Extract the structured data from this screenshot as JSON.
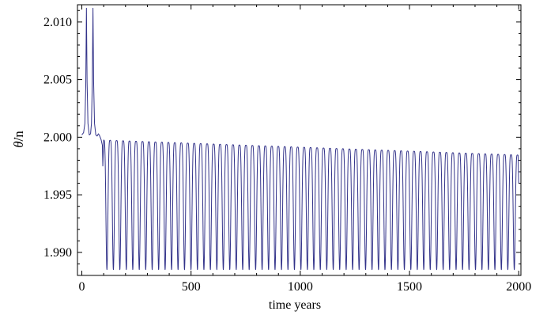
{
  "chart_data": {
    "type": "line",
    "title": "",
    "xlabel": "time  years",
    "ylabel": "θ̇/n",
    "ylabel_main": "θ̇",
    "ylabel_suffix": "/n",
    "xlim": [
      -20,
      2010
    ],
    "ylim": [
      1.988,
      2.0115
    ],
    "xticks": [
      0,
      500,
      1000,
      1500,
      2000
    ],
    "xtick_labels": [
      "0",
      "500",
      "1000",
      "1500",
      "2000"
    ],
    "yticks": [
      1.99,
      1.995,
      2.0,
      2.005,
      2.01
    ],
    "ytick_labels": [
      "1.990",
      "1.995",
      "2.000",
      "2.005",
      "2.010"
    ],
    "grid": false,
    "series": [
      {
        "color": "#33338a",
        "initial_phase": {
          "x": [
            0,
            8,
            14,
            18,
            21,
            24,
            28,
            34,
            40,
            44,
            48,
            51,
            54,
            58,
            64,
            70,
            76,
            82,
            88,
            94,
            96
          ],
          "y": [
            2.0002,
            2.0004,
            2.0012,
            2.0045,
            2.0112,
            2.0048,
            2.0012,
            2.0002,
            2.0003,
            2.0012,
            2.0048,
            2.0112,
            2.0048,
            2.0012,
            2.0002,
            2.0001,
            2.0003,
            2.0001,
            1.9998,
            1.9993,
            1.9975
          ]
        },
        "oscillation": {
          "start_year": 100,
          "end_year": 1997,
          "period_years": 29.6,
          "max_start": 1.99975,
          "max_end": 1.99845,
          "min": 1.9885,
          "final_x": 2000,
          "final_y": 1.996
        }
      }
    ]
  }
}
